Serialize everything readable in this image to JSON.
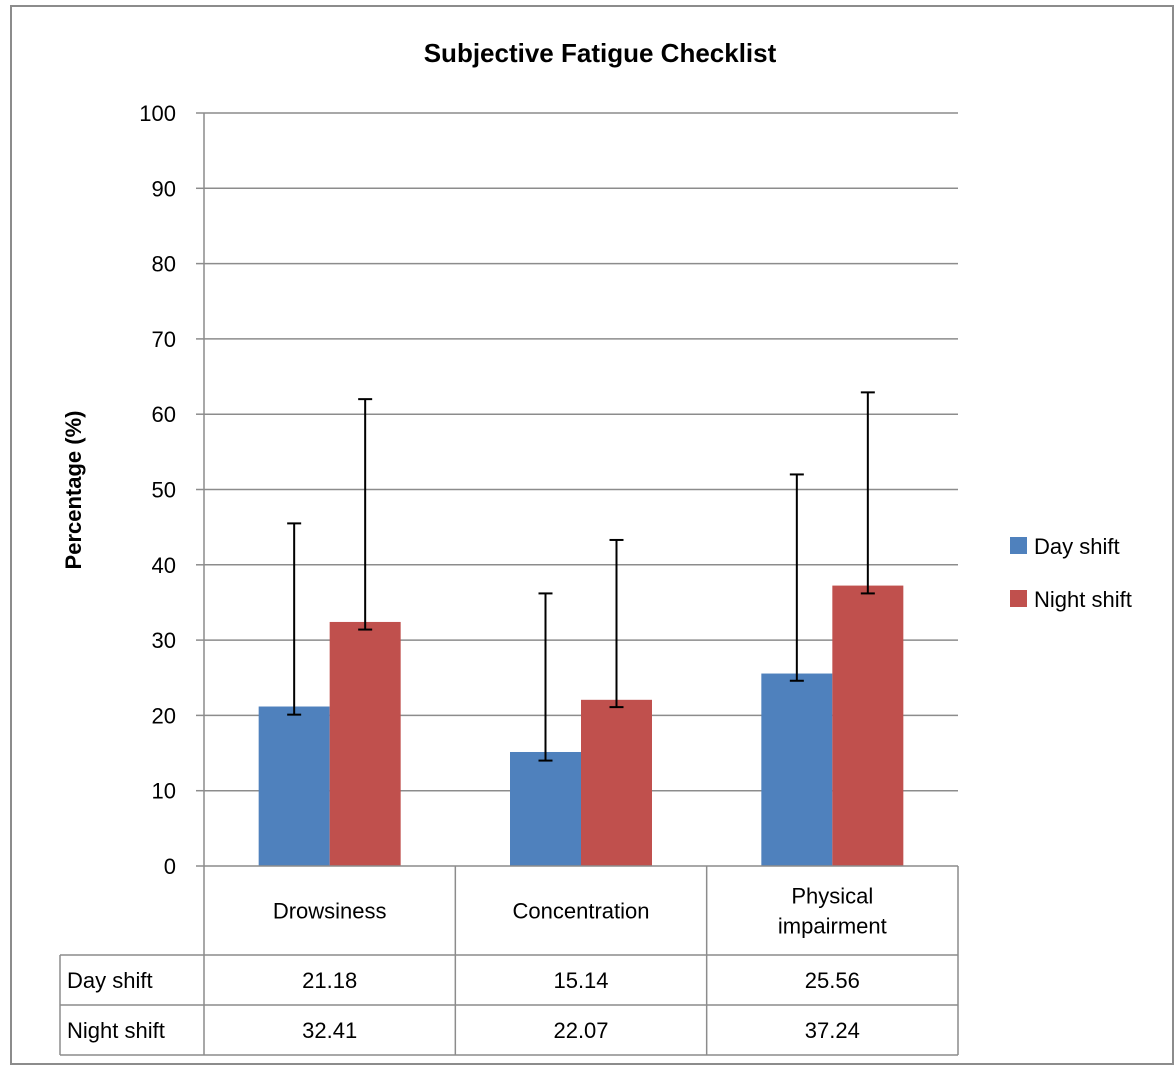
{
  "chart_data": {
    "type": "bar",
    "title": "Subjective Fatigue Checklist",
    "ylabel": "Percentage (%)",
    "xlabel": "",
    "ylim": [
      0,
      100
    ],
    "yticks": [
      0,
      10,
      20,
      30,
      40,
      50,
      60,
      70,
      80,
      90,
      100
    ],
    "y_tick_labels": [
      "0",
      "10",
      "20",
      "30",
      "40",
      "50",
      "60",
      "70",
      "80",
      "90",
      "100"
    ],
    "grid": true,
    "legend_position": "right",
    "categories": [
      [
        "Drowsiness"
      ],
      [
        "Concentration"
      ],
      [
        "Physical",
        "impairment"
      ]
    ],
    "series": [
      {
        "name": "Day shift",
        "color": "#4f81bd",
        "values": [
          21.18,
          15.14,
          25.56
        ],
        "error_upper": [
          45.5,
          36.2,
          52.0
        ],
        "error_lower": [
          20.1,
          14.0,
          24.6
        ],
        "table_labels": [
          "21.18",
          "15.14",
          "25.56"
        ]
      },
      {
        "name": "Night shift",
        "color": "#c0504d",
        "values": [
          32.41,
          22.07,
          37.24
        ],
        "error_upper": [
          62.0,
          43.3,
          62.9
        ],
        "error_lower": [
          31.4,
          21.1,
          36.2
        ],
        "table_labels": [
          "32.41",
          "22.07",
          "37.24"
        ]
      }
    ]
  }
}
